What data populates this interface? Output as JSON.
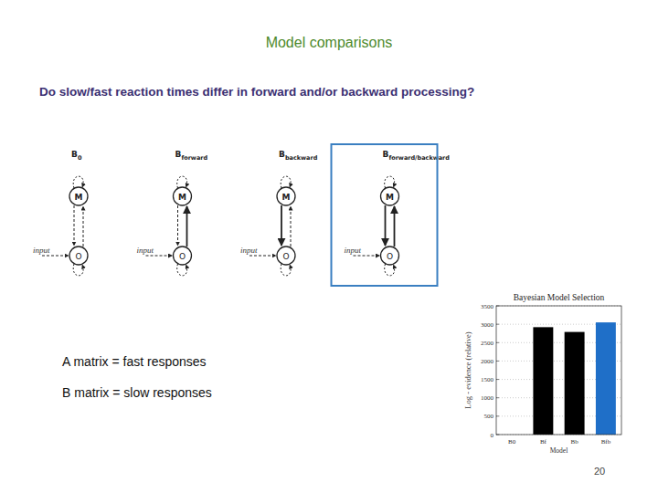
{
  "title": "Model comparisons",
  "subtitle": "Do slow/fast reaction times differ in forward and/or backward processing?",
  "nodes": {
    "top": "M",
    "bottom": "O",
    "input": "input"
  },
  "models": [
    {
      "label": "B",
      "subscript": "0",
      "forward_modulated": false,
      "backward_modulated": false,
      "selected": false
    },
    {
      "label": "B",
      "subscript": "forward",
      "forward_modulated": true,
      "backward_modulated": false,
      "selected": false
    },
    {
      "label": "B",
      "subscript": "backward",
      "forward_modulated": false,
      "backward_modulated": true,
      "selected": false
    },
    {
      "label": "B",
      "subscript": "forward/backward",
      "forward_modulated": true,
      "backward_modulated": true,
      "selected": true
    }
  ],
  "notes": [
    "A matrix = fast responses",
    "B matrix = slow responses"
  ],
  "page_number": "20",
  "chart_data": {
    "type": "bar",
    "title": "Bayesian Model Selection",
    "y_label": "Log - evidence (relative)",
    "x_label": "Model",
    "categories": [
      "B0",
      "Bf",
      "Bb",
      "Bfb"
    ],
    "values": [
      0,
      2920,
      2790,
      3050
    ],
    "colors": [
      "#000000",
      "#000000",
      "#000000",
      "#1f6fc8"
    ],
    "ylim": [
      0,
      3500
    ],
    "yticks": [
      0,
      500,
      1000,
      1500,
      2000,
      2500,
      3000,
      3500
    ],
    "grid": true
  }
}
